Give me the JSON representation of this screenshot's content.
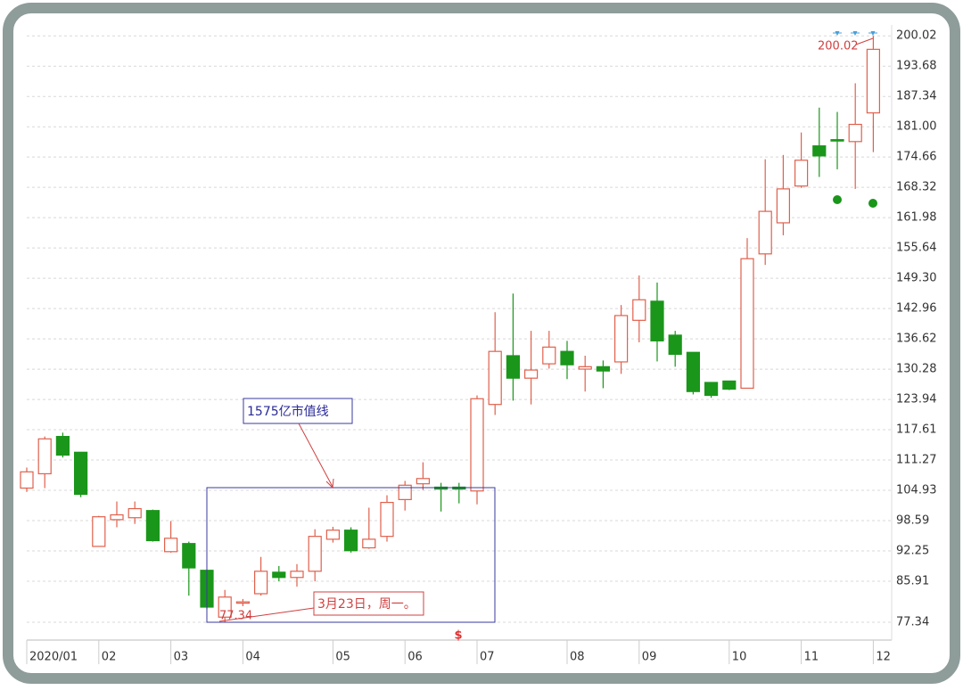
{
  "chart_data": {
    "type": "candlestick",
    "categories": [
      "2020/01",
      null,
      null,
      null,
      "02",
      null,
      null,
      null,
      "03",
      null,
      null,
      null,
      "04",
      null,
      null,
      null,
      null,
      "05",
      null,
      null,
      null,
      "06",
      null,
      null,
      null,
      "07",
      null,
      null,
      null,
      null,
      "08",
      null,
      null,
      null,
      "09",
      null,
      null,
      null,
      null,
      "10",
      null,
      null,
      null,
      "11",
      null,
      null,
      null,
      "12"
    ],
    "open": [
      105.4,
      108.4,
      116.2,
      112.9,
      93.2,
      98.8,
      99.2,
      100.7,
      92.1,
      93.8,
      88.2,
      78.4,
      81.4,
      83.3,
      87.8,
      86.7,
      88.0,
      94.7,
      96.6,
      92.9,
      95.3,
      103.0,
      106.3,
      105.6,
      105.6,
      104.8,
      122.9,
      133.1,
      128.4,
      131.4,
      134.0,
      130.3,
      130.8,
      131.8,
      140.5,
      144.5,
      137.4,
      133.8,
      127.5,
      127.8,
      126.3,
      154.4,
      160.9,
      168.6,
      177.0,
      178.3,
      177.9,
      183.9
    ],
    "high": [
      109.7,
      116.2,
      117.0,
      112.9,
      99.6,
      102.6,
      102.6,
      100.9,
      98.5,
      94.2,
      88.2,
      84.1,
      82.2,
      91.0,
      89.1,
      89.5,
      96.8,
      97.3,
      97.2,
      101.3,
      103.9,
      106.9,
      110.8,
      106.5,
      106.5,
      124.8,
      142.2,
      146.1,
      138.3,
      138.3,
      136.2,
      133.1,
      132.1,
      143.7,
      149.9,
      148.4,
      138.3,
      133.8,
      127.5,
      127.8,
      157.7,
      174.2,
      175.1,
      179.8,
      185.0,
      184.1,
      190.1,
      200.02
    ],
    "low": [
      104.6,
      105.4,
      111.8,
      103.5,
      93.2,
      97.2,
      97.9,
      94.2,
      91.9,
      82.9,
      80.1,
      77.34,
      80.7,
      82.9,
      85.9,
      84.8,
      85.9,
      94.0,
      91.9,
      92.7,
      94.2,
      100.7,
      105.0,
      100.5,
      102.2,
      102.0,
      120.7,
      123.7,
      122.9,
      130.4,
      128.2,
      125.6,
      126.3,
      129.3,
      135.9,
      131.9,
      130.8,
      125.0,
      124.3,
      125.9,
      126.3,
      152.1,
      158.3,
      168.2,
      170.5,
      172.1,
      168.0,
      175.7
    ],
    "close": [
      108.8,
      115.7,
      112.3,
      104.1,
      99.4,
      99.8,
      101.1,
      94.4,
      94.9,
      88.7,
      80.5,
      82.6,
      81.6,
      88.0,
      86.7,
      88.0,
      95.3,
      96.6,
      92.3,
      94.7,
      102.4,
      106.0,
      107.4,
      105.2,
      105.2,
      124.1,
      134.0,
      128.4,
      130.1,
      134.9,
      131.2,
      130.8,
      129.9,
      141.5,
      144.8,
      136.2,
      133.4,
      125.6,
      124.8,
      126.1,
      153.4,
      163.3,
      168.0,
      174.0,
      174.9,
      178.1,
      181.5,
      197.2
    ],
    "up_color": "#e0604c",
    "down_color": "#1a961a",
    "ylim": [
      73.6,
      202.3
    ],
    "yticks": [
      77.34,
      85.91,
      92.25,
      98.59,
      104.93,
      111.27,
      117.61,
      123.94,
      130.28,
      136.62,
      142.96,
      {
        "value": 149.3,
        "label": "149.30"
      },
      155.64,
      161.98,
      168.32,
      174.66,
      {
        "value": 181,
        "label": "181.00"
      },
      187.34,
      193.68,
      200.02
    ],
    "grid": true,
    "annotations": {
      "market_cap_line": "1575亿市值线",
      "date_note": "3月23日，周一。",
      "max_label": 200.02,
      "min_label": 77.34,
      "marker": "$"
    }
  }
}
